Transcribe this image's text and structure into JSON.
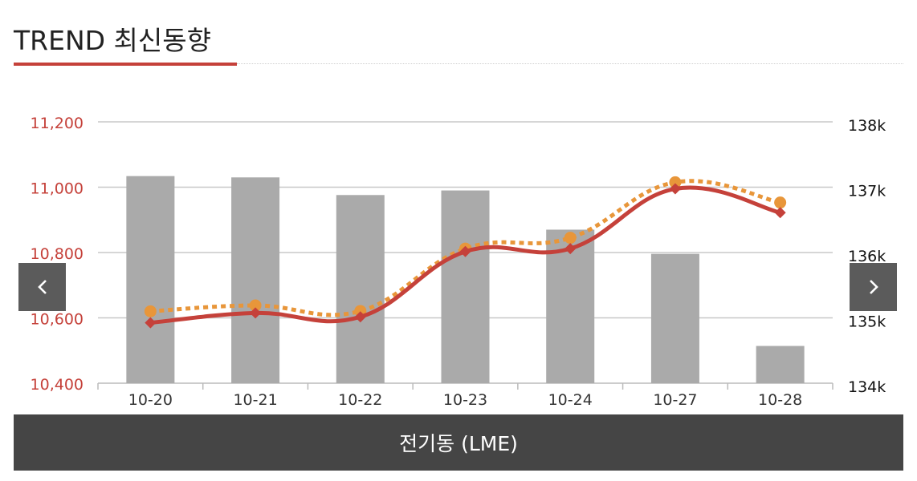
{
  "header": {
    "title": "TREND 최신동향"
  },
  "caption": "전기동 (LME)",
  "nav": {
    "prev_icon": "chevron-left-icon",
    "next_icon": "chevron-right-icon"
  },
  "colors": {
    "accent": "#c5413a",
    "bar": "#aaaaaa",
    "dotted_line": "#e8963a",
    "caption_bg": "#454545",
    "nav_bg": "#5b5b5b"
  },
  "chart_data": {
    "type": "bar",
    "categories": [
      "10-20",
      "10-21",
      "10-22",
      "10-23",
      "10-24",
      "10-27",
      "10-28"
    ],
    "left_axis": {
      "ticks": [
        "11,200",
        "11,000",
        "10,800",
        "10,600",
        "10,400"
      ],
      "range": [
        10400,
        11200
      ]
    },
    "right_axis": {
      "ticks": [
        "138k",
        "137k",
        "136k",
        "135k",
        "134k"
      ],
      "range": [
        134000,
        138000
      ]
    },
    "series": [
      {
        "type": "bar",
        "axis": "right",
        "values": [
          137170,
          137150,
          136880,
          136950,
          136350,
          135980,
          134570
        ]
      },
      {
        "type": "line",
        "axis": "left",
        "style": "solid",
        "marker": "diamond",
        "values": [
          10585,
          10615,
          10603,
          10803,
          10812,
          10995,
          10922
        ]
      },
      {
        "type": "line",
        "axis": "left",
        "style": "dotted",
        "marker": "circle",
        "values": [
          10620,
          10638,
          10621,
          10812,
          10845,
          11015,
          10953
        ]
      }
    ],
    "grid": true
  }
}
